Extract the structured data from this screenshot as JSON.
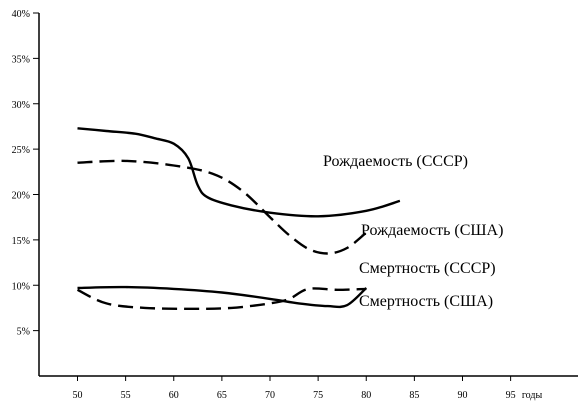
{
  "chart_data": {
    "type": "line",
    "x_unit_label": "годы",
    "x_ticks": [
      50,
      55,
      60,
      65,
      70,
      75,
      80,
      85,
      90,
      95
    ],
    "y_ticks": [
      {
        "value": 5,
        "label": "5%"
      },
      {
        "value": 10,
        "label": "10%"
      },
      {
        "value": 15,
        "label": "15%"
      },
      {
        "value": 20,
        "label": "20%"
      },
      {
        "value": 25,
        "label": "25%"
      },
      {
        "value": 30,
        "label": "30%"
      },
      {
        "value": 35,
        "label": "35%"
      },
      {
        "value": 40,
        "label": "40%"
      }
    ],
    "xlim": [
      46,
      102
    ],
    "ylim": [
      0,
      40
    ],
    "grid": false,
    "series": [
      {
        "name": "Рождаемость (СССР)",
        "style": "solid",
        "points": [
          [
            50,
            27.3
          ],
          [
            53,
            27.0
          ],
          [
            56,
            26.7
          ],
          [
            58,
            26.2
          ],
          [
            60,
            25.6
          ],
          [
            61.5,
            24.0
          ],
          [
            62.5,
            21.0
          ],
          [
            63.5,
            19.7
          ],
          [
            66,
            18.8
          ],
          [
            70,
            18.0
          ],
          [
            75,
            17.6
          ],
          [
            80,
            18.2
          ],
          [
            83.5,
            19.3
          ]
        ]
      },
      {
        "name": "Рождаемость (США)",
        "style": "dashed",
        "points": [
          [
            50,
            23.5
          ],
          [
            55,
            23.7
          ],
          [
            60,
            23.2
          ],
          [
            64,
            22.3
          ],
          [
            67,
            20.5
          ],
          [
            70,
            17.5
          ],
          [
            72,
            15.5
          ],
          [
            74,
            14.0
          ],
          [
            76,
            13.5
          ],
          [
            78,
            14.1
          ],
          [
            80,
            15.8
          ]
        ]
      },
      {
        "name": "Смертность (СССР)",
        "style": "solid",
        "points": [
          [
            50,
            9.7
          ],
          [
            55,
            9.8
          ],
          [
            60,
            9.6
          ],
          [
            65,
            9.2
          ],
          [
            70,
            8.5
          ],
          [
            73,
            8.0
          ],
          [
            76,
            7.7
          ],
          [
            78,
            7.8
          ],
          [
            80,
            9.7
          ]
        ]
      },
      {
        "name": "Смертность (США)",
        "style": "dashed",
        "points": [
          [
            50,
            9.5
          ],
          [
            53,
            8.0
          ],
          [
            57,
            7.5
          ],
          [
            62,
            7.4
          ],
          [
            66,
            7.5
          ],
          [
            70,
            8.0
          ],
          [
            72,
            8.5
          ],
          [
            74,
            9.6
          ],
          [
            77,
            9.5
          ],
          [
            80,
            9.6
          ]
        ]
      }
    ]
  }
}
